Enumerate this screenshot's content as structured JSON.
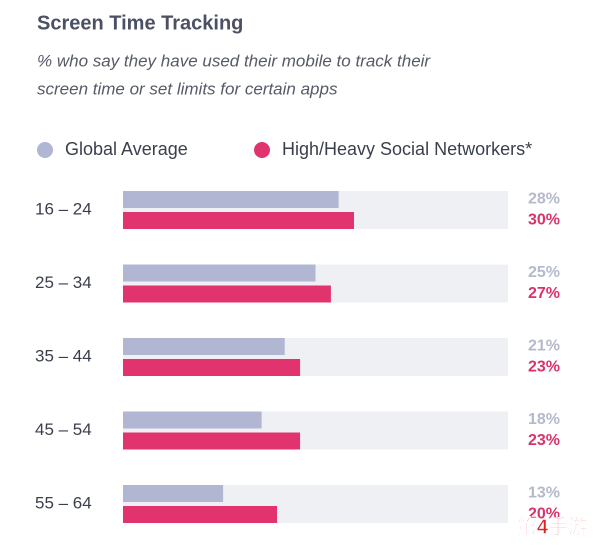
{
  "chart_data": {
    "type": "bar",
    "orientation": "horizontal",
    "title": "Screen Time Tracking",
    "subtitle": [
      "% who say they have used their mobile to track their",
      "screen time or set limits for certain apps"
    ],
    "categories": [
      "16 – 24",
      "25 – 34",
      "35 – 44",
      "45 – 54",
      "55 – 64"
    ],
    "series": [
      {
        "name": "Global Average",
        "color": "#b1b6d3",
        "label_color": "#b5b9cc",
        "values": [
          28,
          25,
          21,
          18,
          13
        ],
        "value_labels": [
          "28%",
          "25%",
          "21%",
          "18%",
          "13%"
        ]
      },
      {
        "name": "High/Heavy Social Networkers*",
        "color": "#e1336e",
        "label_color": "#d9336a",
        "values": [
          30,
          27,
          23,
          23,
          20
        ],
        "value_labels": [
          "30%",
          "27%",
          "23%",
          "23%",
          "20%"
        ]
      }
    ],
    "xlim": [
      0,
      50
    ],
    "track_color": "#eff0f4",
    "watermark": "第4手游"
  }
}
